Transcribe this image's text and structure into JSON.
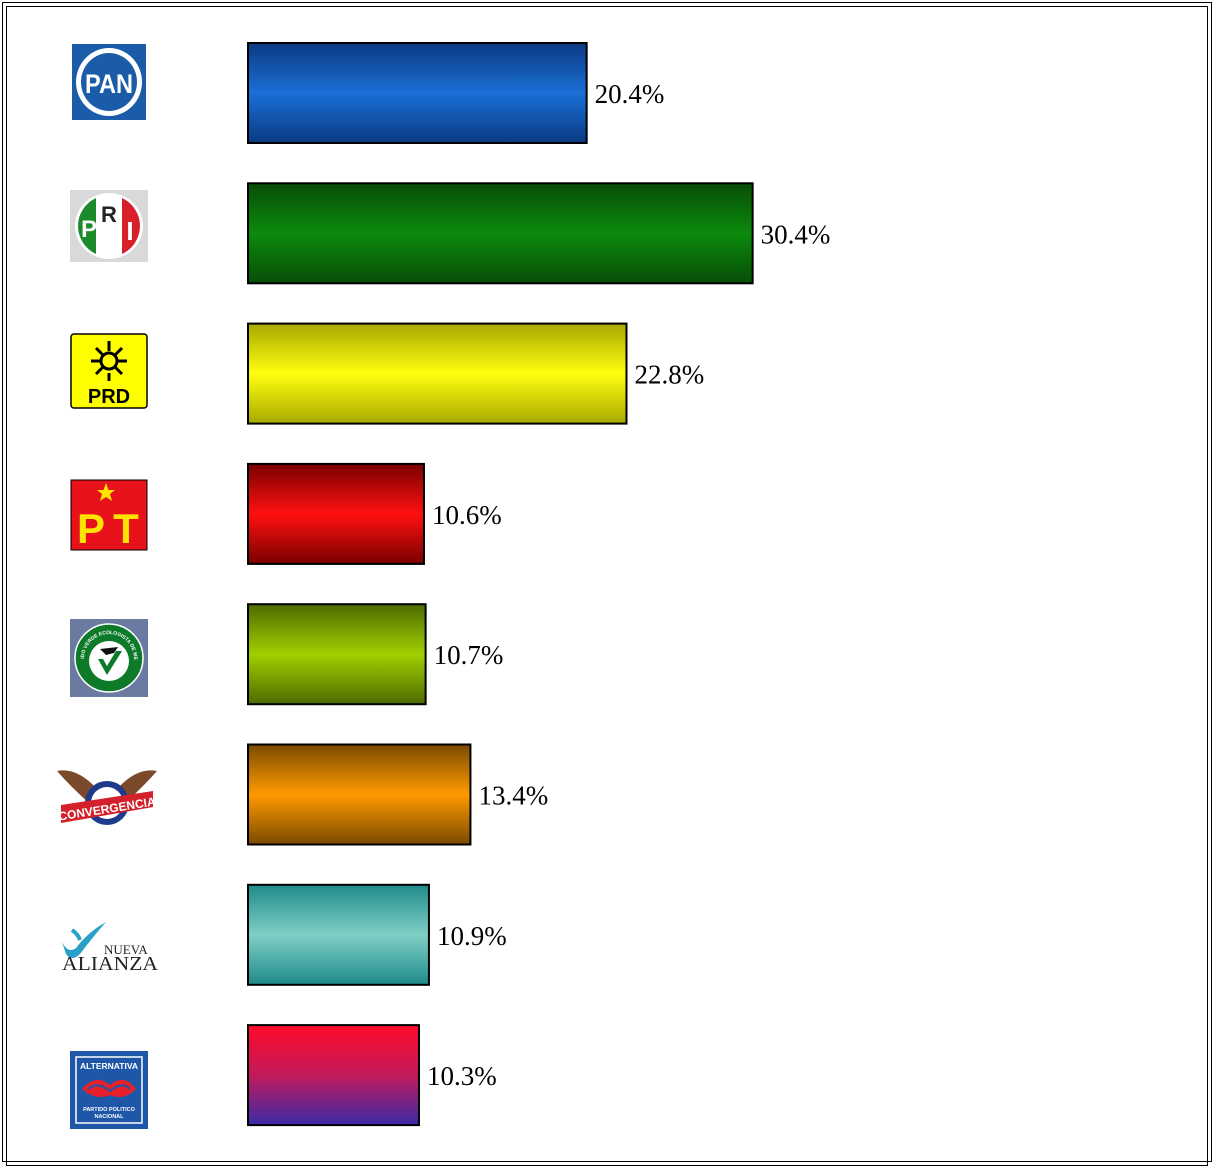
{
  "chart_data": {
    "type": "bar",
    "orientation": "horizontal",
    "categories": [
      "PAN",
      "PRI",
      "PRD",
      "PT",
      "PVEM",
      "CONVERGENCIA",
      "NUEVA ALIANZA",
      "ALTERNATIVA"
    ],
    "values": [
      20.4,
      30.4,
      22.8,
      10.6,
      10.7,
      13.4,
      10.9,
      10.3
    ],
    "value_labels": [
      "20.4%",
      "30.4%",
      "22.8%",
      "10.6%",
      "10.7%",
      "13.4%",
      "10.9%",
      "10.3%"
    ],
    "colors": [
      [
        "#0b3a82",
        "#1a6fd6",
        "#0b3a82"
      ],
      [
        "#074d07",
        "#0c8a0c",
        "#074d07"
      ],
      [
        "#a8a800",
        "#ffff10",
        "#a8a800"
      ],
      [
        "#7a0000",
        "#ff1010",
        "#7a0000"
      ],
      [
        "#4d6b00",
        "#9fd000",
        "#4d6b00"
      ],
      [
        "#7a4a00",
        "#ff9a00",
        "#7a4a00"
      ],
      [
        "#1f8a8a",
        "#7ecfc5",
        "#1f8a8a"
      ],
      [
        "#ff0a2a",
        "#c21a5a",
        "#3a2aa8"
      ]
    ],
    "title": "",
    "xlabel": "",
    "ylabel": "",
    "xlim": [
      0,
      30.4
    ],
    "grid": false,
    "legend": "none"
  },
  "logos": {
    "pan": "PAN",
    "pri": [
      "P",
      "R",
      "I"
    ],
    "prd": "PRD",
    "pt": [
      "P",
      "T"
    ],
    "pvem_ring": "PARTIDO VERDE ECOLOGISTA DE MEXICO",
    "convergencia": "CONVERGENCIA",
    "nueva_alianza": [
      "NUEVA",
      "ALIANZA"
    ],
    "alternativa": [
      "ALTERNATIVA",
      "PARTIDO POLITICO",
      "NACIONAL"
    ]
  }
}
